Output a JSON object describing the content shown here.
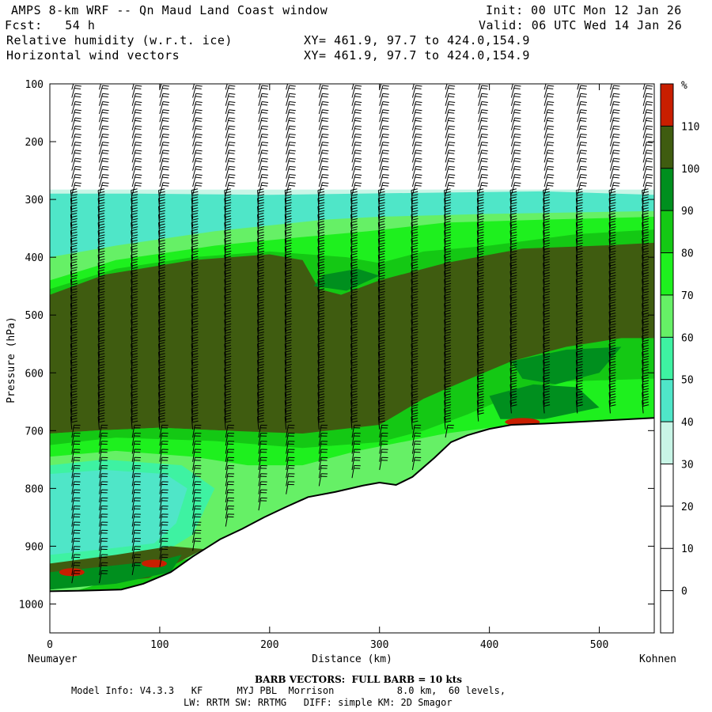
{
  "header": {
    "title": "AMPS 8-km WRF -- Qn Maud Land Coast window",
    "fcst": "Fcst:   54 h",
    "field1": "Relative humidity (w.r.t. ice)",
    "field2": "Horizontal wind vectors",
    "init": "Init: 00 UTC Mon 12 Jan 26",
    "valid": "Valid: 06 UTC Wed 14 Jan 26",
    "xy1": "XY= 461.9, 97.7 to 424.0,154.9",
    "xy2": "XY= 461.9, 97.7 to 424.0,154.9"
  },
  "footer": {
    "barb": "BARB VECTORS:  FULL BARB = 10 kts",
    "model1": "Model Info: V4.3.3   KF      MYJ PBL  Morrison           8.0 km,  60 levels,",
    "model2": "LW: RRTM SW: RRTMG   DIFF: simple KM: 2D Smagor"
  },
  "chart_data": {
    "type": "heatmap",
    "title": "Relative humidity (w.r.t. ice) cross-section with horizontal wind barbs",
    "xlabel": "Distance (km)",
    "ylabel": "Pressure (hPa)",
    "xlim": [
      0,
      550
    ],
    "ylim": [
      1050,
      100
    ],
    "x_ticks": [
      0,
      100,
      200,
      300,
      400,
      500
    ],
    "y_ticks": [
      100,
      200,
      300,
      400,
      500,
      600,
      700,
      800,
      900,
      1000
    ],
    "x_endpoints": {
      "left": "Neumayer",
      "right": "Kohnen"
    },
    "colorbar": {
      "unit": "%",
      "levels": [
        0,
        10,
        20,
        30,
        40,
        50,
        60,
        70,
        80,
        90,
        100,
        110
      ],
      "colors": [
        "#ffffff",
        "#ffffff",
        "#ffffff",
        "#c8f5e6",
        "#4fe6c8",
        "#3ef2a2",
        "#66f066",
        "#1ef01e",
        "#14c814",
        "#008f1e",
        "#3f5c10",
        "#c81e00"
      ]
    },
    "terrain_hPa": [
      [
        0,
        978
      ],
      [
        30,
        977
      ],
      [
        65,
        975
      ],
      [
        85,
        965
      ],
      [
        110,
        945
      ],
      [
        130,
        918
      ],
      [
        155,
        888
      ],
      [
        175,
        870
      ],
      [
        195,
        850
      ],
      [
        215,
        832
      ],
      [
        235,
        815
      ],
      [
        260,
        806
      ],
      [
        285,
        795
      ],
      [
        300,
        790
      ],
      [
        315,
        794
      ],
      [
        330,
        780
      ],
      [
        350,
        747
      ],
      [
        365,
        720
      ],
      [
        380,
        708
      ],
      [
        400,
        697
      ],
      [
        420,
        690
      ],
      [
        450,
        688
      ],
      [
        500,
        683
      ],
      [
        550,
        678
      ]
    ],
    "layers": [
      {
        "name": "rh_30_40_top",
        "top": [
          [
            0,
            290
          ],
          [
            550,
            290
          ]
        ],
        "bottom": [
          [
            0,
            345
          ],
          [
            100,
            325
          ],
          [
            200,
            300
          ],
          [
            300,
            310
          ],
          [
            400,
            290
          ],
          [
            550,
            290
          ]
        ]
      },
      {
        "name": "rh_60_70_band",
        "pressure_range_hPa": [
          330,
          460
        ]
      },
      {
        "name": "rh_100_110_mid",
        "pressure_range_hPa": [
          380,
          700
        ]
      },
      {
        "name": "rh_40_50_lower_left",
        "pressure_range_hPa": [
          760,
          920
        ],
        "x_range_km": [
          0,
          150
        ]
      },
      {
        "name": "rh_over_110_patches",
        "points_km_hPa": [
          [
            20,
            945
          ],
          [
            95,
            930
          ],
          [
            430,
            685
          ]
        ]
      }
    ],
    "barb_columns_km": [
      20,
      45,
      75,
      100,
      130,
      160,
      190,
      215,
      245,
      275,
      300,
      330,
      360,
      390,
      420,
      450,
      480,
      510,
      540
    ]
  }
}
